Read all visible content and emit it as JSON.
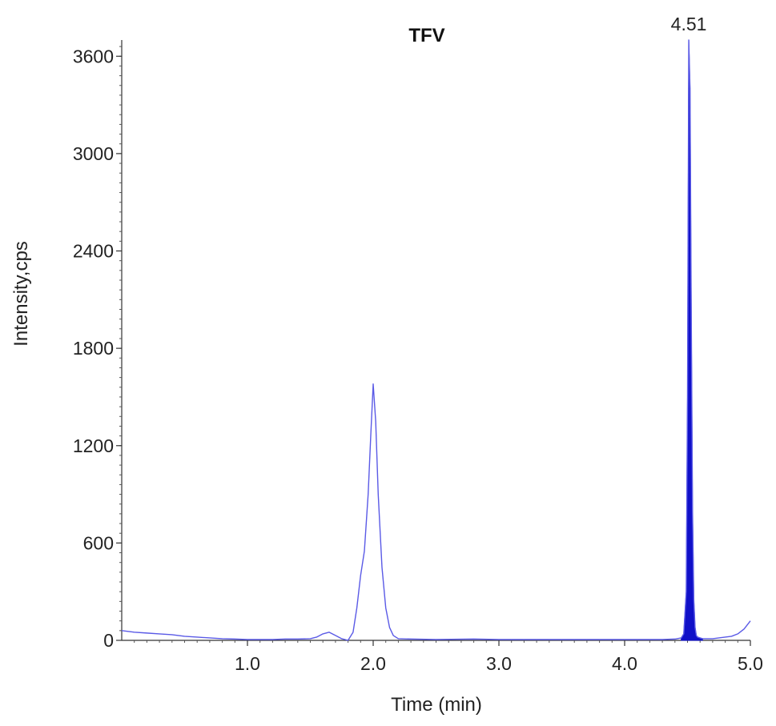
{
  "chart_data": {
    "type": "line",
    "title": "TFV",
    "xlabel": "Time (min)",
    "ylabel": "Intensity,cps",
    "xlim": [
      0,
      5.0
    ],
    "ylim": [
      0,
      3700
    ],
    "x_ticks": [
      1.0,
      2.0,
      3.0,
      4.0,
      5.0
    ],
    "x_tick_labels": [
      "1.0",
      "2.0",
      "3.0",
      "4.0",
      "5.0"
    ],
    "y_ticks": [
      0,
      600,
      1200,
      1800,
      2400,
      3000,
      3600
    ],
    "y_tick_labels": [
      "0",
      "600",
      "1200",
      "1800",
      "2400",
      "3000",
      "3600"
    ],
    "grid": false,
    "line_color": "#5a5ae6",
    "fill_color": "#1010c8",
    "series": [
      {
        "x": [
          0.0,
          0.05,
          0.1,
          0.2,
          0.3,
          0.4,
          0.5,
          0.6,
          0.7,
          0.8,
          0.9,
          1.0,
          1.1,
          1.2,
          1.3,
          1.4,
          1.5,
          1.55,
          1.6,
          1.65,
          1.7,
          1.75,
          1.8,
          1.84,
          1.87,
          1.9,
          1.93,
          1.96,
          1.98,
          2.0,
          2.02,
          2.04,
          2.07,
          2.1,
          2.13,
          2.16,
          2.2,
          2.3,
          2.5,
          2.8,
          3.0,
          3.2,
          3.5,
          3.8,
          4.0,
          4.2,
          4.3,
          4.4,
          4.45,
          4.47,
          4.49,
          4.5,
          4.51,
          4.52,
          4.53,
          4.54,
          4.55,
          4.56,
          4.57,
          4.58,
          4.6,
          4.62,
          4.65,
          4.7,
          4.75,
          4.8,
          4.85,
          4.9,
          4.95,
          5.0
        ],
        "y": [
          60,
          55,
          50,
          45,
          40,
          35,
          25,
          20,
          15,
          10,
          8,
          5,
          5,
          5,
          8,
          8,
          10,
          20,
          40,
          50,
          30,
          10,
          0,
          50,
          200,
          400,
          550,
          900,
          1250,
          1580,
          1350,
          900,
          450,
          200,
          80,
          30,
          10,
          8,
          5,
          8,
          5,
          5,
          5,
          5,
          5,
          5,
          5,
          8,
          15,
          40,
          300,
          1500,
          3700,
          3400,
          2000,
          800,
          250,
          80,
          30,
          20,
          15,
          10,
          10,
          10,
          15,
          20,
          25,
          40,
          70,
          120
        ]
      }
    ],
    "annotations": [
      {
        "x": 4.51,
        "y": 3700,
        "text": "4.51"
      }
    ]
  }
}
